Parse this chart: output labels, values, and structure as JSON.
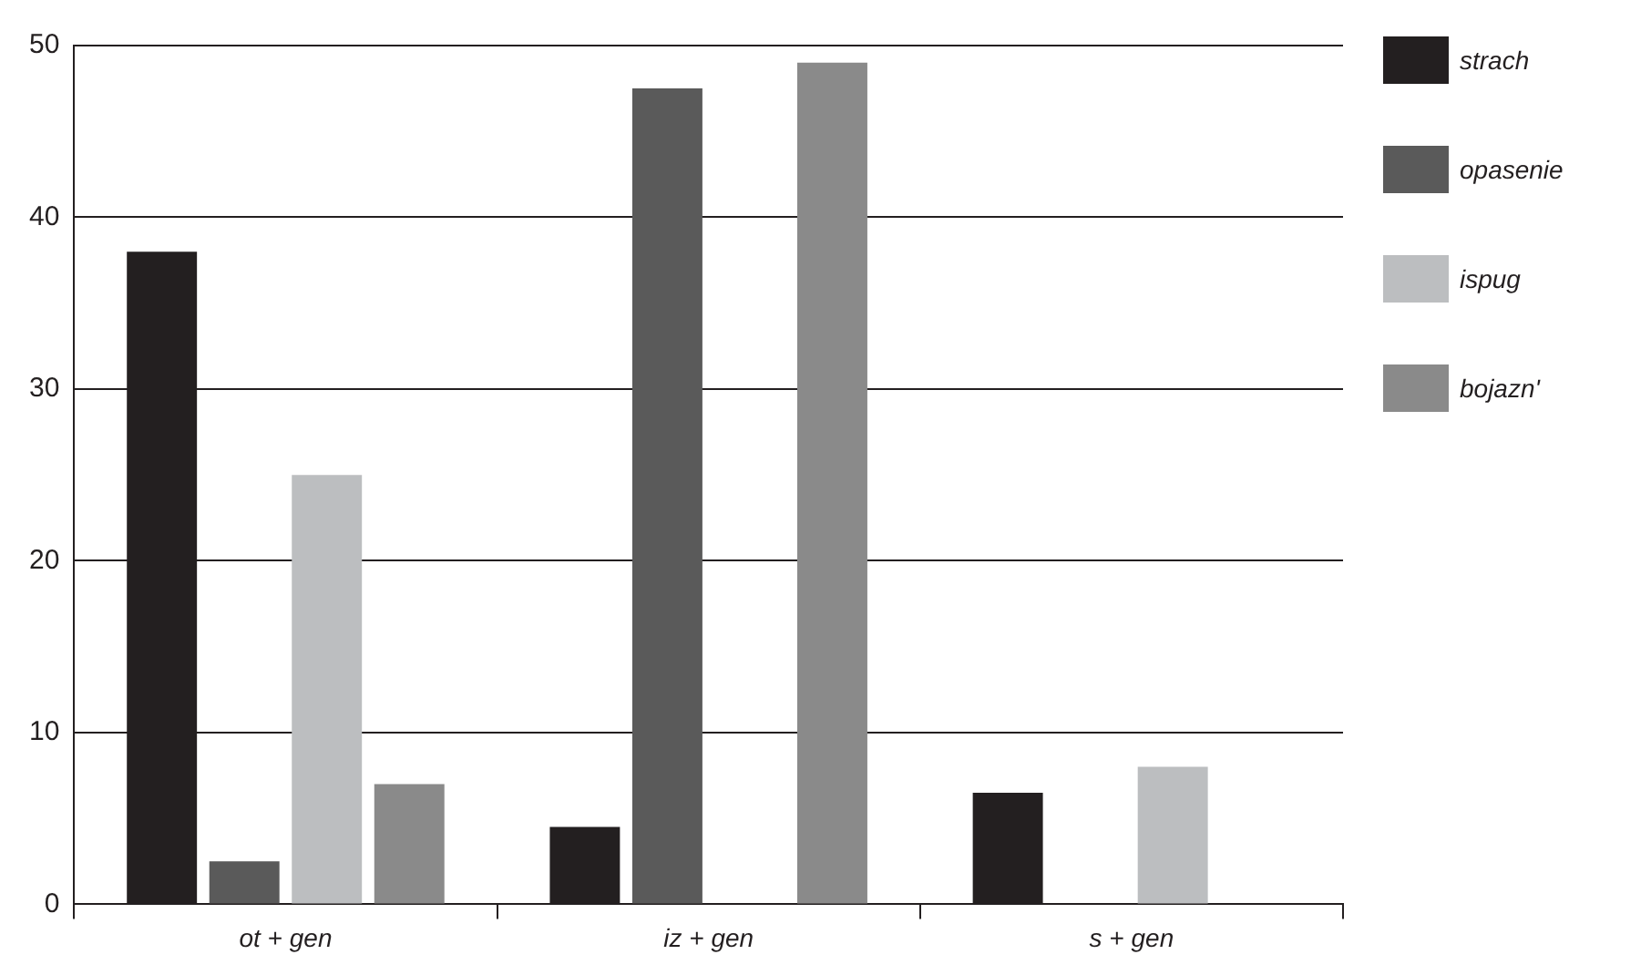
{
  "chart_data": {
    "type": "bar",
    "categories": [
      "ot + gen",
      "iz + gen",
      "s + gen"
    ],
    "series": [
      {
        "name": "strach",
        "color": "#231f20",
        "values": [
          38,
          4.5,
          6.5
        ]
      },
      {
        "name": "opasenie",
        "color": "#5a5a5a",
        "values": [
          2.5,
          47.5,
          null
        ]
      },
      {
        "name": "ispug",
        "color": "#bcbec0",
        "values": [
          25,
          null,
          8
        ]
      },
      {
        "name": "bojazn'",
        "color": "#8a8a8a",
        "values": [
          7,
          49,
          null
        ]
      }
    ],
    "ylim": [
      0,
      50
    ],
    "yticks": [
      0,
      10,
      20,
      30,
      40,
      50
    ],
    "grid": "y",
    "legend": "right"
  }
}
